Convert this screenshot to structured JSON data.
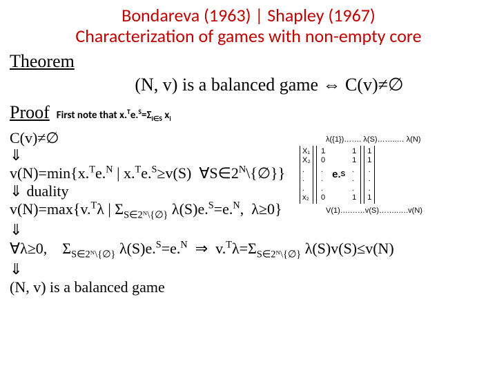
{
  "title_line1": "Bondareva (1963) | Shapley (1967)",
  "title_line2": "Characterization of games with  non-empty core",
  "theorem_label": "Theorem",
  "theorem_stmt": "(N, v) is a balanced game ⇔ C(v)≠∅",
  "proof_label": "Proof",
  "proof_note_prefix": "First note that x.",
  "proof_note_mid": "e.",
  "proof_note_eq": "=Σ",
  "proof_note_sub": "i∈S",
  "proof_note_end": " x",
  "line_cv": "C(v)≠∅",
  "arrow": "⇓",
  "line_vmin": "v(N)=min{x.Te.N | x.Te.S≥v(S)  ∀S∈2N\\{∅}}",
  "duality": "duality",
  "line_vmax": "v(N)=max{v.Tλ | ΣS∈2ᴺ\\{∅} λ(S)e.S=e.N,  λ≥0}",
  "forall_line": "∀λ≥0,     ΣS∈2ᴺ\\{∅} λ(S)e.S=e.N  ⇒  v.Tλ=ΣS∈2ᴺ\\{∅} λ(S)v(S)≤v(N)",
  "final": "(N, v) is a balanced game",
  "matrix": {
    "lambda_row": "λ({1})……. λ(S)……..… λ(N)",
    "x_labels": [
      "X₁",
      "X₂",
      ".",
      ".",
      ".",
      "x₂"
    ],
    "m_left": [
      "1",
      "0",
      ".",
      ".",
      ".",
      "0"
    ],
    "m_right": [
      "1",
      "1",
      ".",
      ".",
      ".",
      "1"
    ],
    "center": "e.S",
    "rhs": [
      "1",
      "1",
      ".",
      ".",
      ".",
      "1"
    ],
    "v_row": "V(1)….……v(S)……..….v(N)"
  }
}
